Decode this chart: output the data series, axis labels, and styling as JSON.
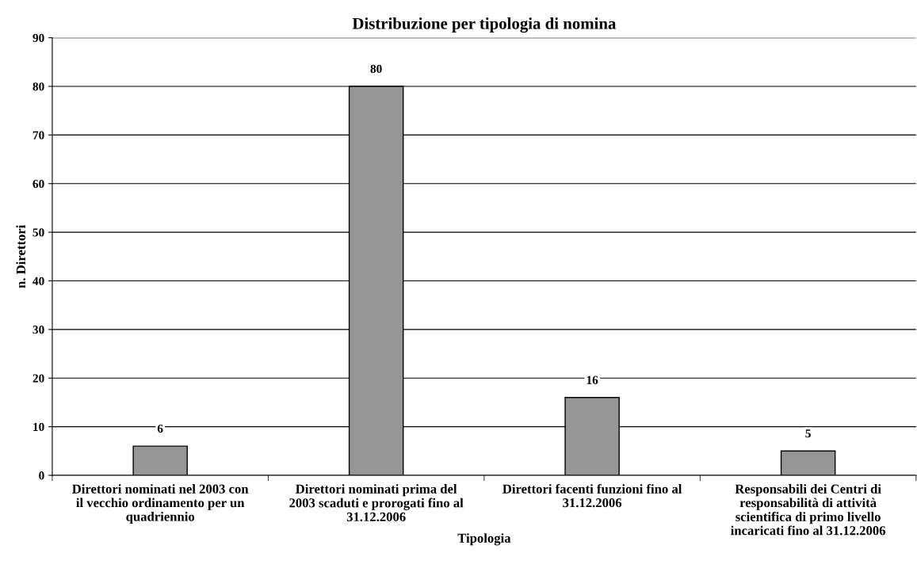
{
  "chart_data": {
    "type": "bar",
    "title": "Distribuzione per tipologia di nomina",
    "xlabel": "Tipologia",
    "ylabel": "n. Direttori",
    "categories": [
      "Direttori nominati nel 2003 con\nil vecchio ordinamento per un\nquadriennio",
      "Direttori nominati prima del\n2003 scaduti e prorogati fino al\n31.12.2006",
      "Direttori facenti funzioni fino al\n31.12.2006",
      "Responsabili dei Centri di\nresponsabilità di attività\nscientifica di primo livello\nincaricati fino al 31.12.2006"
    ],
    "values": [
      6,
      80,
      16,
      5
    ],
    "color": "#969696",
    "ylim": [
      0,
      90
    ],
    "yticks": [
      0,
      10,
      20,
      30,
      40,
      50,
      60,
      70,
      80,
      90
    ],
    "grid": "y",
    "data_labels": true
  }
}
